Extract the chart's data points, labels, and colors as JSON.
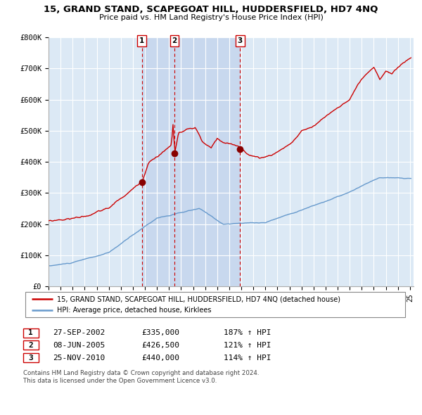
{
  "title": "15, GRAND STAND, SCAPEGOAT HILL, HUDDERSFIELD, HD7 4NQ",
  "subtitle": "Price paid vs. HM Land Registry's House Price Index (HPI)",
  "legend_label_red": "15, GRAND STAND, SCAPEGOAT HILL, HUDDERSFIELD, HD7 4NQ (detached house)",
  "legend_label_blue": "HPI: Average price, detached house, Kirklees",
  "transactions": [
    {
      "num": 1,
      "date": "27-SEP-2002",
      "price": 335000,
      "hpi_pct": "187% ↑ HPI",
      "x": 2002.74
    },
    {
      "num": 2,
      "date": "08-JUN-2005",
      "price": 426500,
      "hpi_pct": "121% ↑ HPI",
      "x": 2005.44
    },
    {
      "num": 3,
      "date": "25-NOV-2010",
      "price": 440000,
      "hpi_pct": "114% ↑ HPI",
      "x": 2010.9
    }
  ],
  "footer1": "Contains HM Land Registry data © Crown copyright and database right 2024.",
  "footer2": "This data is licensed under the Open Government Licence v3.0.",
  "ylim": [
    0,
    800000
  ],
  "yticks": [
    0,
    100000,
    200000,
    300000,
    400000,
    500000,
    600000,
    700000,
    800000
  ],
  "ytick_labels": [
    "£0",
    "£100K",
    "£200K",
    "£300K",
    "£400K",
    "£500K",
    "£600K",
    "£700K",
    "£800K"
  ],
  "background_color": "#dce9f5",
  "grid_color": "#ffffff",
  "red_line_color": "#cc0000",
  "blue_line_color": "#6699cc",
  "dot_color": "#880000",
  "shade_color": "#c8d8ee",
  "xlim_start": 1995.0,
  "xlim_end": 2025.3
}
